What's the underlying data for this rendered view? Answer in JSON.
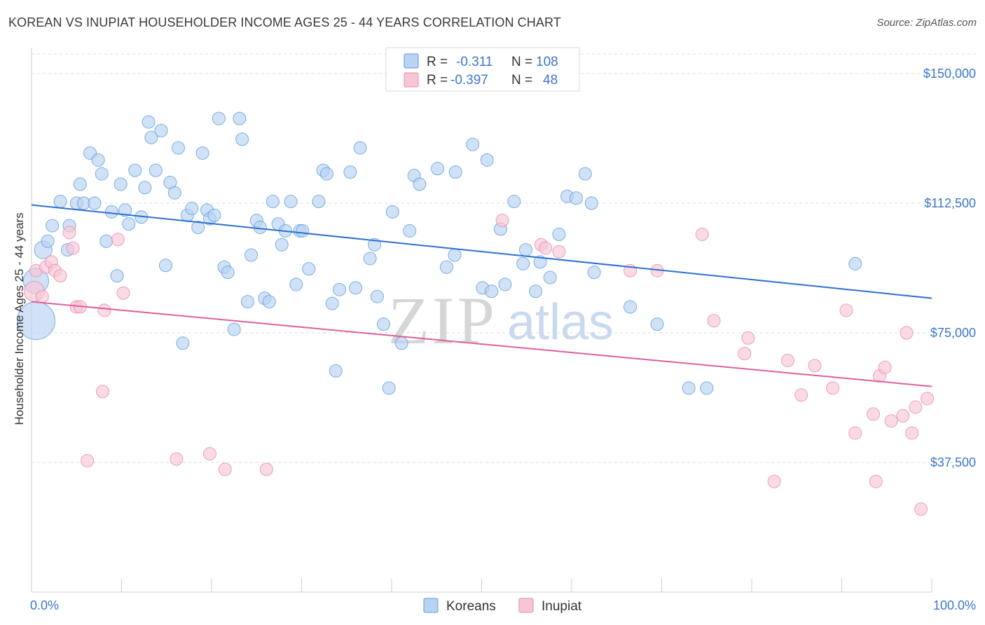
{
  "title": "KOREAN VS INUPIAT HOUSEHOLDER INCOME AGES 25 - 44 YEARS CORRELATION CHART",
  "source": "Source: ZipAtlas.com",
  "watermark": {
    "zip": "ZIP",
    "atlas": "atlas"
  },
  "legend_box": {
    "rows": [
      {
        "r_label": "R =",
        "r_value": "-0.311",
        "n_label": "N =",
        "n_value": "108",
        "color": "#5b9be0"
      },
      {
        "r_label": "R =",
        "r_value": "-0.397",
        "n_label": "N =",
        "n_value": "48",
        "color": "#e88aa8"
      }
    ]
  },
  "chart_data": {
    "type": "scatter",
    "title": "KOREAN VS INUPIAT HOUSEHOLDER INCOME AGES 25 - 44 YEARS CORRELATION CHART",
    "xlabel": "",
    "ylabel": "Householder Income Ages 25 - 44 years",
    "xlim": [
      0,
      100
    ],
    "ylim": [
      0,
      157500
    ],
    "x_tick_labels": [
      "0.0%",
      "100.0%"
    ],
    "y_ticks": [
      37500,
      75000,
      112500,
      150000
    ],
    "y_tick_labels": [
      "$37,500",
      "$75,000",
      "$112,500",
      "$150,000"
    ],
    "grid": true,
    "legend_position": "bottom-center",
    "series": [
      {
        "name": "Koreans",
        "color": "#5b9be0",
        "fill": "#b9d3f2",
        "trend": {
          "x": [
            0,
            100
          ],
          "y": [
            112000,
            85000
          ]
        },
        "points": [
          [
            0.5,
            78500,
            3
          ],
          [
            0.5,
            90000,
            2
          ],
          [
            1.3,
            99000,
            1.4
          ],
          [
            1.8,
            101500,
            1
          ],
          [
            2.3,
            106000,
            1
          ],
          [
            3.2,
            113000,
            1
          ],
          [
            4,
            99000,
            1
          ],
          [
            4.2,
            106000,
            1
          ],
          [
            5,
            112500,
            1
          ],
          [
            5.4,
            118000,
            1
          ],
          [
            5.8,
            112500,
            1
          ],
          [
            6.5,
            127000,
            1
          ],
          [
            7,
            112500,
            1
          ],
          [
            7.4,
            125000,
            1
          ],
          [
            7.8,
            121000,
            1
          ],
          [
            8.3,
            101500,
            1
          ],
          [
            8.9,
            110000,
            1
          ],
          [
            9.5,
            91500,
            1
          ],
          [
            9.9,
            118000,
            1
          ],
          [
            10.4,
            110500,
            1
          ],
          [
            10.8,
            106500,
            1
          ],
          [
            11.5,
            122000,
            1
          ],
          [
            12.2,
            108500,
            1
          ],
          [
            12.6,
            117000,
            1
          ],
          [
            13,
            136000,
            1
          ],
          [
            13.3,
            131500,
            1
          ],
          [
            13.8,
            122000,
            1
          ],
          [
            14.4,
            133500,
            1
          ],
          [
            14.9,
            94500,
            1
          ],
          [
            15.4,
            118500,
            1
          ],
          [
            15.9,
            115500,
            1
          ],
          [
            16.3,
            128500,
            1
          ],
          [
            16.8,
            72000,
            1
          ],
          [
            17.3,
            109000,
            1
          ],
          [
            17.8,
            111000,
            1
          ],
          [
            18.5,
            105500,
            1
          ],
          [
            19,
            127000,
            1
          ],
          [
            19.5,
            110500,
            1
          ],
          [
            19.8,
            108000,
            1
          ],
          [
            20.3,
            109000,
            1
          ],
          [
            20.8,
            137000,
            1
          ],
          [
            21.4,
            94000,
            1
          ],
          [
            21.8,
            92500,
            1
          ],
          [
            22.5,
            76000,
            1
          ],
          [
            23.1,
            137000,
            1
          ],
          [
            23.4,
            131000,
            1
          ],
          [
            24,
            84000,
            1
          ],
          [
            24.4,
            97500,
            1
          ],
          [
            25,
            107500,
            1
          ],
          [
            25.4,
            105500,
            1
          ],
          [
            25.9,
            85000,
            1
          ],
          [
            26.4,
            84000,
            1
          ],
          [
            26.8,
            113000,
            1
          ],
          [
            27.4,
            106500,
            1
          ],
          [
            27.8,
            100500,
            1
          ],
          [
            28.2,
            104500,
            1
          ],
          [
            28.8,
            113000,
            1
          ],
          [
            29.4,
            89000,
            1
          ],
          [
            29.8,
            104500,
            1
          ],
          [
            30.1,
            104500,
            1
          ],
          [
            30.8,
            93500,
            1
          ],
          [
            31.9,
            113000,
            1
          ],
          [
            32.4,
            122000,
            1
          ],
          [
            32.8,
            121000,
            1
          ],
          [
            33.4,
            83500,
            1
          ],
          [
            33.8,
            64000,
            1
          ],
          [
            34.2,
            87500,
            1
          ],
          [
            35.4,
            121500,
            1
          ],
          [
            36,
            88000,
            1
          ],
          [
            36.5,
            128500,
            1
          ],
          [
            37.6,
            96500,
            1
          ],
          [
            38.1,
            100500,
            1
          ],
          [
            38.4,
            85500,
            1
          ],
          [
            39.1,
            77500,
            1
          ],
          [
            39.7,
            59000,
            1
          ],
          [
            40.1,
            110000,
            1
          ],
          [
            41.1,
            72000,
            1
          ],
          [
            42,
            104500,
            1
          ],
          [
            42.5,
            120500,
            1
          ],
          [
            43.1,
            118000,
            1
          ],
          [
            45.1,
            122500,
            1
          ],
          [
            46.1,
            94000,
            1
          ],
          [
            47,
            97500,
            1
          ],
          [
            47.1,
            121500,
            1
          ],
          [
            49,
            129500,
            1
          ],
          [
            50.1,
            88000,
            1
          ],
          [
            50.6,
            125000,
            1
          ],
          [
            51.1,
            87000,
            1
          ],
          [
            52.1,
            105000,
            1
          ],
          [
            52.6,
            89000,
            1
          ],
          [
            53.6,
            113000,
            1
          ],
          [
            54.6,
            95000,
            1
          ],
          [
            54.9,
            99000,
            1
          ],
          [
            56,
            87000,
            1
          ],
          [
            56.5,
            95500,
            1
          ],
          [
            57.6,
            91000,
            1
          ],
          [
            58.6,
            103500,
            1
          ],
          [
            59.5,
            114500,
            1
          ],
          [
            60.5,
            114000,
            1
          ],
          [
            61.5,
            121000,
            1
          ],
          [
            62.2,
            112500,
            1
          ],
          [
            62.5,
            92500,
            1
          ],
          [
            66.5,
            82500,
            1
          ],
          [
            69.5,
            77500,
            1
          ],
          [
            73,
            59000,
            1
          ],
          [
            75,
            59000,
            1
          ],
          [
            91.5,
            95000,
            1
          ]
        ]
      },
      {
        "name": "Inupiat",
        "color": "#e88aa8",
        "fill": "#f7c6d6",
        "trend": {
          "x": [
            0,
            100
          ],
          "y": [
            84000,
            59500
          ]
        },
        "points": [
          [
            0.3,
            87000,
            1.6
          ],
          [
            0.5,
            93000,
            1
          ],
          [
            1.2,
            85500,
            1
          ],
          [
            1.6,
            94000,
            1
          ],
          [
            2.2,
            95500,
            1
          ],
          [
            2.6,
            93000,
            1
          ],
          [
            3.2,
            91500,
            1
          ],
          [
            4.2,
            104000,
            1
          ],
          [
            4.6,
            99500,
            1
          ],
          [
            5,
            82500,
            1
          ],
          [
            5.4,
            82500,
            1
          ],
          [
            6.2,
            38000,
            1
          ],
          [
            7.9,
            58000,
            1
          ],
          [
            8.1,
            81500,
            1
          ],
          [
            9.6,
            102000,
            1
          ],
          [
            10.2,
            86500,
            1
          ],
          [
            16.1,
            38500,
            1
          ],
          [
            19.8,
            40000,
            1
          ],
          [
            21.5,
            35500,
            1
          ],
          [
            26.1,
            35500,
            1
          ],
          [
            52.3,
            107500,
            1
          ],
          [
            56.6,
            100500,
            1
          ],
          [
            57.1,
            99500,
            1
          ],
          [
            58.6,
            98500,
            1
          ],
          [
            66.5,
            93000,
            1
          ],
          [
            69.5,
            93000,
            1
          ],
          [
            74.5,
            103500,
            1
          ],
          [
            75.8,
            78500,
            1
          ],
          [
            79.2,
            69000,
            1
          ],
          [
            79.6,
            73500,
            1
          ],
          [
            82.5,
            32000,
            1
          ],
          [
            84,
            67000,
            1
          ],
          [
            85.5,
            57000,
            1
          ],
          [
            87,
            65500,
            1
          ],
          [
            89,
            59000,
            1
          ],
          [
            90.5,
            81500,
            1
          ],
          [
            91.5,
            46000,
            1
          ],
          [
            93.5,
            51500,
            1
          ],
          [
            93.8,
            32000,
            1
          ],
          [
            94.2,
            62500,
            1
          ],
          [
            94.8,
            65000,
            1
          ],
          [
            95.5,
            49500,
            1
          ],
          [
            96.8,
            51000,
            1
          ],
          [
            97.2,
            75000,
            1
          ],
          [
            97.8,
            46000,
            1
          ],
          [
            98.2,
            53500,
            1
          ],
          [
            98.8,
            24000,
            1
          ],
          [
            99.5,
            56000,
            1
          ]
        ]
      }
    ]
  }
}
